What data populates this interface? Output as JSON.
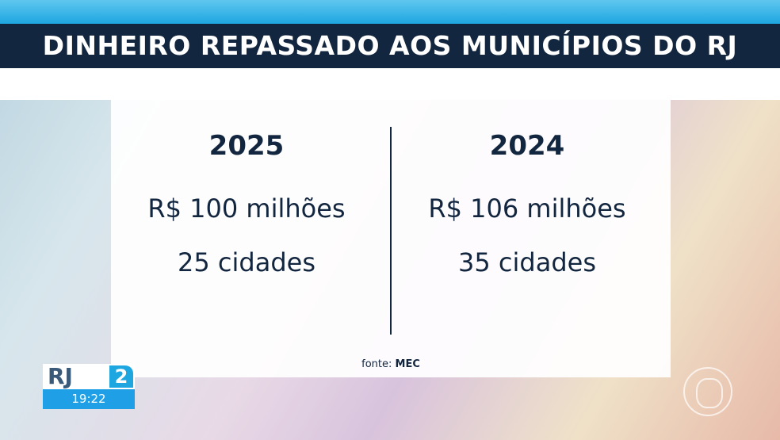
{
  "title": "DINHEIRO REPASSADO AOS MUNICÍPIOS DO RJ",
  "columns": [
    {
      "year": "2025",
      "amount": "R$ 100 milhões",
      "cities": "25 cidades"
    },
    {
      "year": "2024",
      "amount": "R$ 106 milhões",
      "cities": "35 cidades"
    }
  ],
  "source": {
    "label": "fonte:",
    "value": "MEC"
  },
  "logo": {
    "text": "RJ",
    "number": "2",
    "time": "19:22"
  },
  "colors": {
    "navy": "#13263f",
    "blue": "#1ea6e0"
  }
}
